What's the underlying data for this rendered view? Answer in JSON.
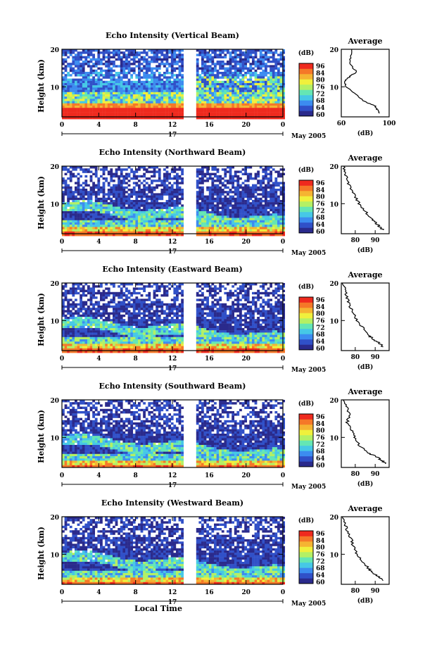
{
  "figure": {
    "month_label": "May 2005",
    "day_label": "17",
    "xaxis_label": "Local Time",
    "average_title": "Average",
    "height_label": "Height (km)",
    "colorbar_unit": "(dB)",
    "average_xunit": "(dB)"
  },
  "colors": {
    "colormap": [
      "#2a2a8c",
      "#3050c8",
      "#3c8cf0",
      "#46c8e6",
      "#64e6b4",
      "#b4f064",
      "#f0f03c",
      "#f5b432",
      "#f57828",
      "#ef2a1e"
    ]
  },
  "chart_data": [
    {
      "type": "heatmap",
      "title": "Echo Intensity (Vertical Beam)",
      "x_ticks": [
        "0",
        "4",
        "8",
        "12",
        "16",
        "20",
        "0"
      ],
      "y_ticks": [
        "20",
        "10"
      ],
      "xlim": [
        0,
        24
      ],
      "ylim": [
        2,
        20
      ],
      "data_gap_hours": [
        13.3,
        14.5
      ],
      "colorbar": {
        "ticks": [
          "96",
          "84",
          "80",
          "76",
          "72",
          "68",
          "64",
          "60"
        ],
        "range": [
          60,
          96
        ]
      },
      "average_profile": {
        "x_ticks": [
          "60",
          "100"
        ],
        "xlim": [
          60,
          100
        ],
        "ylim": [
          2,
          20
        ],
        "height_km": [
          20,
          18,
          16,
          14,
          13,
          12,
          11,
          10,
          8,
          6,
          5,
          4,
          3
        ],
        "avg_db": [
          69,
          68,
          67,
          73,
          68,
          64,
          63,
          64,
          72,
          80,
          88,
          90,
          92
        ]
      }
    },
    {
      "type": "heatmap",
      "title": "Echo Intensity (Northward Beam)",
      "x_ticks": [
        "0",
        "4",
        "8",
        "12",
        "16",
        "20",
        "0"
      ],
      "y_ticks": [
        "20",
        "10"
      ],
      "xlim": [
        0,
        24
      ],
      "ylim": [
        2,
        20
      ],
      "data_gap_hours": [
        13.3,
        14.5
      ],
      "colorbar": {
        "ticks": [
          "96",
          "84",
          "80",
          "76",
          "72",
          "68",
          "64",
          "60"
        ],
        "range": [
          60,
          96
        ]
      },
      "average_profile": {
        "x_ticks": [
          "80",
          "90"
        ],
        "xlim": [
          73,
          97
        ],
        "ylim": [
          2,
          20
        ],
        "height_km": [
          20,
          18,
          16,
          14,
          12,
          10,
          8,
          6,
          5,
          4,
          3
        ],
        "avg_db": [
          74,
          75,
          76,
          78,
          80,
          82,
          85,
          88,
          90,
          92,
          94
        ]
      }
    },
    {
      "type": "heatmap",
      "title": "Echo Intensity (Eastward Beam)",
      "x_ticks": [
        "0",
        "4",
        "8",
        "12",
        "16",
        "20",
        "0"
      ],
      "y_ticks": [
        "20",
        "10"
      ],
      "xlim": [
        0,
        24
      ],
      "ylim": [
        2,
        20
      ],
      "data_gap_hours": [
        13.3,
        14.5
      ],
      "colorbar": {
        "ticks": [
          "96",
          "84",
          "80",
          "76",
          "72",
          "68",
          "64",
          "60"
        ],
        "range": [
          60,
          96
        ]
      },
      "average_profile": {
        "x_ticks": [
          "80",
          "90"
        ],
        "xlim": [
          73,
          97
        ],
        "ylim": [
          2,
          20
        ],
        "height_km": [
          20,
          18,
          16,
          14,
          12,
          10,
          8,
          6,
          5,
          4,
          3
        ],
        "avg_db": [
          74,
          75,
          76,
          77,
          79,
          81,
          84,
          87,
          89,
          92,
          94
        ]
      }
    },
    {
      "type": "heatmap",
      "title": "Echo Intensity (Southward Beam)",
      "x_ticks": [
        "0",
        "4",
        "8",
        "12",
        "16",
        "20",
        "0"
      ],
      "y_ticks": [
        "20",
        "10"
      ],
      "xlim": [
        0,
        24
      ],
      "ylim": [
        2,
        20
      ],
      "data_gap_hours": [
        13.3,
        14.5
      ],
      "colorbar": {
        "ticks": [
          "96",
          "84",
          "80",
          "76",
          "72",
          "68",
          "64",
          "60"
        ],
        "range": [
          60,
          96
        ]
      },
      "average_profile": {
        "x_ticks": [
          "80",
          "90"
        ],
        "xlim": [
          73,
          97
        ],
        "ylim": [
          2,
          20
        ],
        "height_km": [
          20,
          18,
          16,
          14,
          12,
          10,
          8,
          6,
          5,
          4,
          3
        ],
        "avg_db": [
          74,
          76,
          77,
          76,
          78,
          80,
          82,
          86,
          90,
          93,
          95
        ]
      }
    },
    {
      "type": "heatmap",
      "title": "Echo Intensity (Westward Beam)",
      "x_ticks": [
        "0",
        "4",
        "8",
        "12",
        "16",
        "20",
        "0"
      ],
      "y_ticks": [
        "20",
        "10"
      ],
      "xlim": [
        0,
        24
      ],
      "ylim": [
        2,
        20
      ],
      "data_gap_hours": [
        13.3,
        14.5
      ],
      "colorbar": {
        "ticks": [
          "96",
          "84",
          "80",
          "76",
          "72",
          "68",
          "64",
          "60"
        ],
        "range": [
          60,
          96
        ]
      },
      "average_profile": {
        "x_ticks": [
          "80",
          "90"
        ],
        "xlim": [
          73,
          97
        ],
        "ylim": [
          2,
          20
        ],
        "height_km": [
          20,
          18,
          16,
          14,
          12,
          10,
          8,
          6,
          5,
          4,
          3
        ],
        "avg_db": [
          74,
          75,
          76,
          78,
          79,
          81,
          84,
          87,
          89,
          92,
          94
        ]
      }
    }
  ]
}
